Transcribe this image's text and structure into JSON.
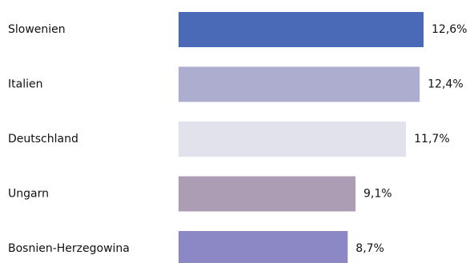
{
  "chart_data": {
    "type": "bar",
    "orientation": "horizontal",
    "categories": [
      "Slowenien",
      "Italien",
      "Deutschland",
      "Ungarn",
      "Bosnien-Herzegowina"
    ],
    "values": [
      12.6,
      12.4,
      11.7,
      9.1,
      8.7
    ],
    "value_labels": [
      "12,6%",
      "12,4%",
      "11,7%",
      "9,1%",
      "8,7%"
    ],
    "unit": "%",
    "colors": [
      "#4a6ab8",
      "#adadcf",
      "#e2e2ec",
      "#ad9db4",
      "#8c88c6"
    ],
    "xlim": [
      0,
      12.6
    ],
    "grid": false,
    "legend": "none"
  }
}
